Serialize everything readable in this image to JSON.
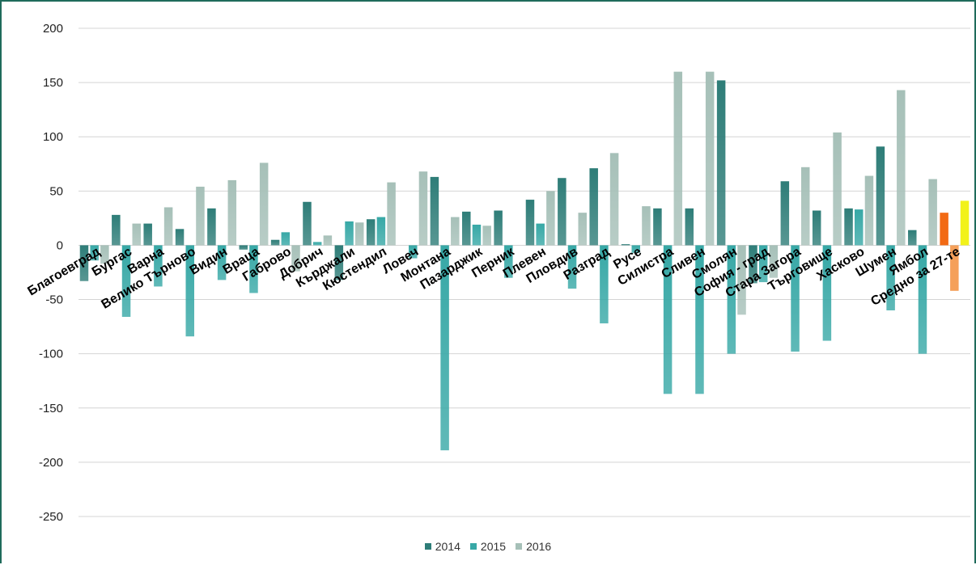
{
  "chart_data": {
    "type": "bar",
    "title": "",
    "xlabel": "",
    "ylabel": "",
    "ylim": [
      -250,
      200
    ],
    "yticks": [
      200,
      150,
      100,
      50,
      0,
      -50,
      -100,
      -150,
      -200,
      -250
    ],
    "grid": true,
    "legend_position": "bottom",
    "categories": [
      "Благоевград",
      "Бургас",
      "Варна",
      "Велико Търново",
      "Видин",
      "Враца",
      "Габрово",
      "Добрич",
      "Кърджали",
      "Кюстендил",
      "Ловеч",
      "Монтана",
      "Пазарджик",
      "Перник",
      "Плевен",
      "Пловдив",
      "Разград",
      "Русе",
      "Силистра",
      "Сливен",
      "Смолян",
      "София - град",
      "Стара Загора",
      "Търговище",
      "Хасково",
      "Шумен",
      "Ямбол",
      "Средно за 27-те"
    ],
    "series": [
      {
        "name": "2014",
        "color": "#2e7d78",
        "values": [
          -33,
          28,
          20,
          15,
          34,
          -4,
          5,
          40,
          -32,
          24,
          0,
          63,
          31,
          32,
          42,
          62,
          71,
          1,
          34,
          34,
          152,
          -35,
          59,
          32,
          34,
          91,
          14,
          30
        ]
      },
      {
        "name": "2015",
        "color": "#37a8a6",
        "values": [
          -14,
          -66,
          -38,
          -84,
          -32,
          -44,
          12,
          3,
          22,
          26,
          -12,
          -189,
          19,
          -30,
          20,
          -40,
          -72,
          -7,
          -137,
          -137,
          -100,
          -34,
          -98,
          -88,
          33,
          -60,
          -100,
          -42
        ]
      },
      {
        "name": "2016",
        "color": "#a6c0b8",
        "values": [
          -17,
          20,
          35,
          54,
          60,
          76,
          -24,
          9,
          21,
          58,
          68,
          26,
          18,
          0,
          50,
          30,
          85,
          36,
          160,
          160,
          -64,
          -30,
          72,
          104,
          64,
          143,
          61,
          41
        ]
      }
    ],
    "highlight_colors": {
      "2014": "#f26a14",
      "2015": "#f5a05a",
      "2016": "#f2f21a"
    }
  }
}
